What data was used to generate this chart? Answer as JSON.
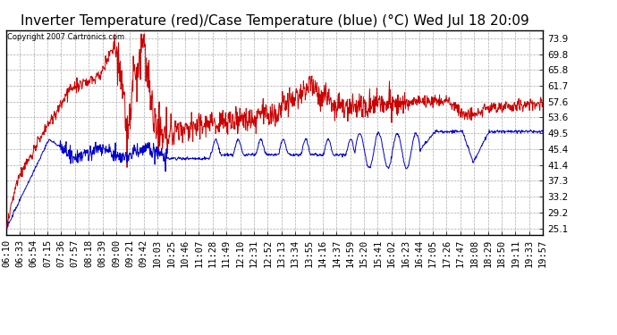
{
  "title": "Inverter Temperature (red)/Case Temperature (blue) (°C) Wed Jul 18 20:09",
  "copyright": "Copyright 2007 Cartronics.com",
  "yticks": [
    25.1,
    29.2,
    33.2,
    37.3,
    41.4,
    45.4,
    49.5,
    53.6,
    57.6,
    61.7,
    65.8,
    69.8,
    73.9
  ],
  "ylim": [
    23.5,
    76.0
  ],
  "x_labels": [
    "06:10",
    "06:33",
    "06:54",
    "07:15",
    "07:36",
    "07:57",
    "08:18",
    "08:39",
    "09:00",
    "09:21",
    "09:42",
    "10:03",
    "10:25",
    "10:46",
    "11:07",
    "11:28",
    "11:49",
    "12:10",
    "12:31",
    "12:52",
    "13:13",
    "13:34",
    "13:55",
    "14:16",
    "14:37",
    "14:59",
    "15:20",
    "15:41",
    "16:02",
    "16:23",
    "16:44",
    "17:05",
    "17:26",
    "17:47",
    "18:08",
    "18:29",
    "18:50",
    "19:11",
    "19:33",
    "19:57"
  ],
  "bg_color": "#ffffff",
  "plot_bg_color": "#ffffff",
  "grid_color": "#aaaaaa",
  "red_color": "#cc0000",
  "blue_color": "#0000cc",
  "title_fontsize": 11,
  "tick_fontsize": 7.5,
  "copyright_fontsize": 6
}
